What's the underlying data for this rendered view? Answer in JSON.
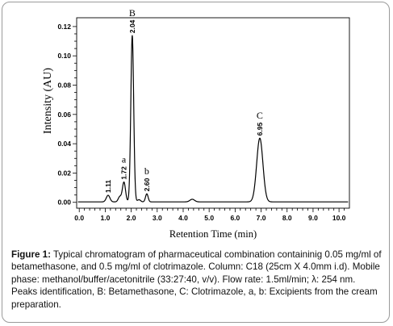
{
  "chart_data": {
    "type": "line",
    "xlabel": "Retention Time (min)",
    "ylabel": "Intensity (AU)",
    "xlim": [
      -0.1,
      10.4
    ],
    "ylim": [
      -0.004,
      0.126
    ],
    "x_ticks": [
      0.0,
      1.0,
      2.0,
      3.0,
      4.0,
      5.0,
      6.0,
      7.0,
      8.0,
      9.0,
      10.0
    ],
    "x_tick_labels": [
      "0.0",
      "1.0",
      "2.0",
      "3.0",
      "4.0",
      "5.0",
      "6.0",
      "7.0",
      "8.0",
      "9.0",
      "10.0"
    ],
    "y_ticks": [
      0.0,
      0.02,
      0.04,
      0.06,
      0.08,
      0.1,
      0.12
    ],
    "y_tick_labels": [
      "0.00",
      "0.02",
      "0.04",
      "0.06",
      "0.08",
      "0.10",
      "0.12"
    ],
    "baseline": 0.0003,
    "peaks": [
      {
        "rt": 1.11,
        "rt_label": "1.11",
        "height": 0.0045,
        "width": 0.07,
        "name": ""
      },
      {
        "rt": 1.56,
        "rt_label": "",
        "height": 0.0035,
        "width": 0.06,
        "name": ""
      },
      {
        "rt": 1.72,
        "rt_label": "1.72",
        "height": 0.0135,
        "width": 0.06,
        "name": "a"
      },
      {
        "rt": 2.04,
        "rt_label": "2.04",
        "height": 0.1135,
        "width": 0.055,
        "name": "B"
      },
      {
        "rt": 2.3,
        "rt_label": "",
        "height": 0.0015,
        "width": 0.06,
        "name": ""
      },
      {
        "rt": 2.6,
        "rt_label": "2.60",
        "height": 0.0055,
        "width": 0.05,
        "name": "b"
      },
      {
        "rt": 4.35,
        "rt_label": "",
        "height": 0.0018,
        "width": 0.09,
        "name": ""
      },
      {
        "rt": 6.95,
        "rt_label": "6.95",
        "height": 0.0435,
        "width": 0.12,
        "name": "C"
      }
    ]
  },
  "caption": {
    "label": "Figure 1:",
    "text": " Typical chromatogram of pharmaceutical combination containinig 0.05 mg/ml of betamethasone, and 0.5 mg/ml of clotrimazole. Column: C18 (25cm X 4.0mm i.d). Mobile phase: methanol/buffer/acetonitrile (33:27:40, v/v). Flow rate: 1.5ml/min; λ: 254 nm. Peaks identification, B: Betamethasone, C: Clotrimazole, a, b: Excipients from the cream preparation."
  },
  "colors": {
    "trace": "#000000",
    "axis": "#000000",
    "frame_border": "#9a9a9a"
  }
}
